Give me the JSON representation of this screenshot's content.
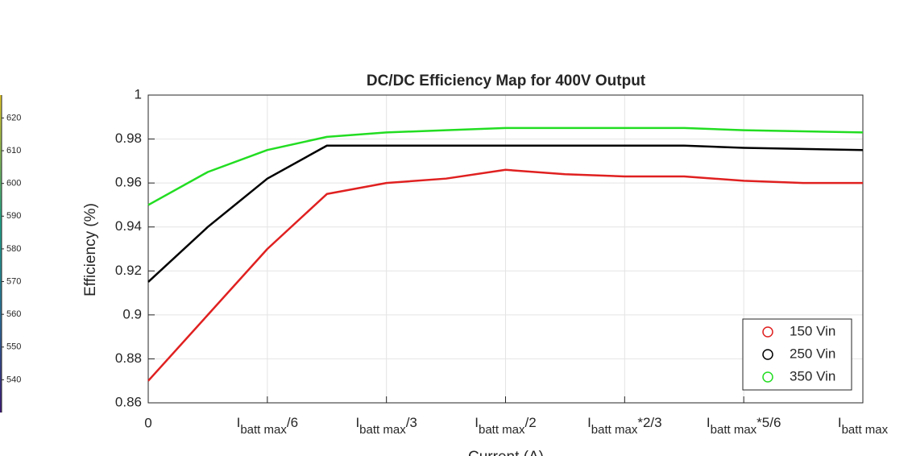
{
  "chart_data": [
    {
      "type": "line",
      "title": "DC/DC Efficiency Map for 400V Output",
      "xlabel": "Current (A)",
      "ylabel": "Efficiency (%)",
      "x": [
        0,
        0.5,
        1,
        1.5,
        2,
        2.5,
        3,
        3.5,
        4,
        4.5,
        5,
        5.5,
        6
      ],
      "series": [
        {
          "name": "150 Vin",
          "color": "#e02020",
          "values": [
            0.87,
            0.9,
            0.93,
            0.955,
            0.96,
            0.962,
            0.966,
            0.964,
            0.963,
            0.963,
            0.961,
            0.96,
            0.96
          ]
        },
        {
          "name": "250 Vin",
          "color": "#000000",
          "values": [
            0.915,
            0.94,
            0.962,
            0.977,
            0.977,
            0.977,
            0.977,
            0.977,
            0.977,
            0.977,
            0.976,
            0.9755,
            0.975
          ]
        },
        {
          "name": "350 Vin",
          "color": "#22dd22",
          "values": [
            0.95,
            0.965,
            0.975,
            0.981,
            0.983,
            0.984,
            0.985,
            0.985,
            0.985,
            0.985,
            0.984,
            0.9835,
            0.983
          ]
        }
      ],
      "xlim": [
        0,
        6
      ],
      "xticks": [
        0,
        {
          "value": 1,
          "label": "Ibatt max/6"
        },
        {
          "value": 2,
          "label": "Ibatt max/3"
        },
        {
          "value": 3,
          "label": "Ibatt max/2"
        },
        {
          "value": 4,
          "label": "Ibatt max*2/3"
        },
        {
          "value": 5,
          "label": "Ibatt max*5/6"
        },
        {
          "value": 6,
          "label": "Ibatt max"
        }
      ],
      "ylim": [
        0.86,
        1
      ],
      "yticks": [
        0.86,
        0.88,
        0.9,
        0.92,
        0.94,
        0.96,
        0.98,
        1
      ],
      "grid": true,
      "legend": "lower right"
    },
    {
      "type": "colorbar",
      "ylim": [
        530,
        627
      ],
      "yticks": [
        540,
        550,
        560,
        570,
        580,
        590,
        600,
        610,
        620
      ]
    }
  ]
}
